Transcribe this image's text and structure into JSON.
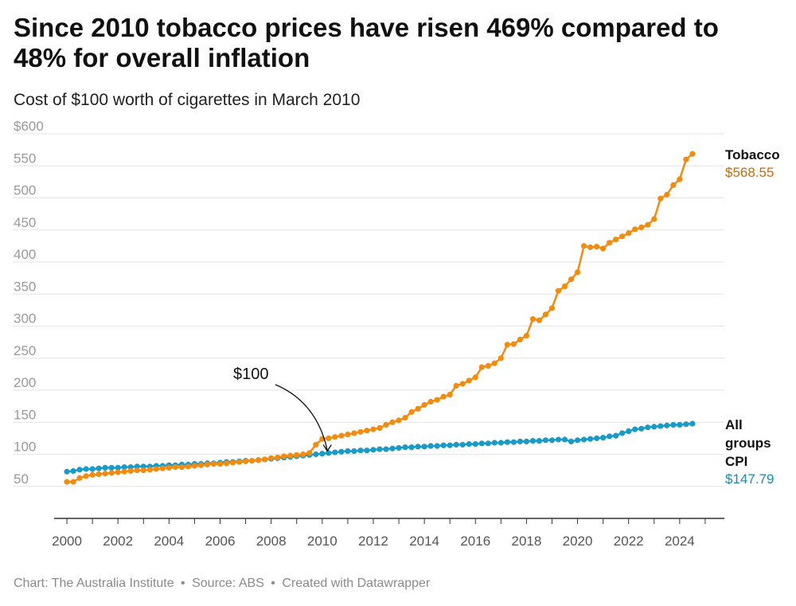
{
  "header": {
    "title": "Since 2010 tobacco prices have risen 469% compared to 48% for overall inflation",
    "subtitle": "Cost of $100 worth of cigarettes in March 2010"
  },
  "footer": {
    "chart_credit": "Chart: The Australia Institute",
    "source": "Source: ABS",
    "created": "Created with Datawrapper",
    "separator": "•"
  },
  "annotation": {
    "text": "$100",
    "x": 2010.2,
    "y": 100
  },
  "colors": {
    "tobacco": "#f28c10",
    "cpi": "#1a9ac7",
    "tobacco_value_text": "#c96a00",
    "cpi_value_text": "#1a8ab0"
  },
  "chart_data": {
    "type": "line",
    "title": "Since 2010 tobacco prices have risen 469% compared to 48% for overall inflation",
    "subtitle": "Cost of $100 worth of cigarettes in March 2010",
    "xlabel": "",
    "ylabel": "",
    "xlim": [
      1999.5,
      2025.75
    ],
    "ylim": [
      0,
      600
    ],
    "x_ticks": [
      2000,
      2002,
      2004,
      2006,
      2008,
      2010,
      2012,
      2014,
      2016,
      2018,
      2020,
      2022,
      2024
    ],
    "y_ticks": [
      50,
      100,
      150,
      200,
      250,
      300,
      350,
      400,
      450,
      500,
      550,
      600
    ],
    "y_tick_labels": [
      "50",
      "100",
      "150",
      "200",
      "250",
      "300",
      "350",
      "400",
      "450",
      "500",
      "550",
      "$600"
    ],
    "grid": true,
    "x_start": 2000.0,
    "x_step": 0.25,
    "series": [
      {
        "name": "Tobacco",
        "end_label": "$568.55",
        "label_lines": [
          "Tobacco"
        ],
        "values": [
          57,
          57,
          63,
          66,
          68,
          69,
          70,
          71,
          72,
          73,
          74,
          75,
          75,
          76,
          77,
          78,
          79,
          80,
          80,
          81,
          82,
          83,
          84,
          85,
          85,
          86,
          87,
          88,
          89,
          90,
          91,
          92,
          94,
          95,
          97,
          98,
          99,
          100,
          102,
          115,
          124,
          125,
          127,
          129,
          131,
          133,
          135,
          137,
          139,
          141,
          146,
          150,
          153,
          157,
          166,
          171,
          177,
          182,
          185,
          190,
          193,
          207,
          210,
          215,
          220,
          236,
          238,
          242,
          250,
          271,
          272,
          279,
          285,
          311,
          309,
          318,
          328,
          355,
          362,
          373,
          384,
          425,
          423,
          424,
          421,
          430,
          435,
          440,
          445,
          451,
          454,
          458,
          467,
          499,
          505,
          520,
          529,
          560,
          568.55
        ]
      },
      {
        "name": "All groups CPI",
        "end_label": "$147.79",
        "label_lines": [
          "All",
          "groups",
          "CPI"
        ],
        "values": [
          73,
          74,
          76,
          77,
          77,
          78,
          79,
          79,
          79,
          80,
          80,
          81,
          81,
          81,
          82,
          82,
          83,
          83,
          84,
          84,
          85,
          85,
          86,
          86,
          87,
          88,
          88,
          89,
          90,
          90,
          91,
          92,
          93,
          94,
          95,
          96,
          97,
          98,
          99,
          100,
          101,
          102,
          103,
          104,
          105,
          105,
          106,
          106,
          107,
          108,
          108,
          109,
          110,
          111,
          111,
          112,
          112,
          113,
          113,
          114,
          114,
          115,
          115,
          116,
          116,
          117,
          117,
          118,
          118,
          119,
          119,
          120,
          120,
          121,
          121,
          122,
          122,
          123,
          123,
          120,
          122,
          123,
          124,
          125,
          126,
          128,
          129,
          133,
          136,
          139,
          140,
          142,
          143,
          144,
          145,
          146,
          146,
          147,
          147.79
        ]
      }
    ]
  }
}
